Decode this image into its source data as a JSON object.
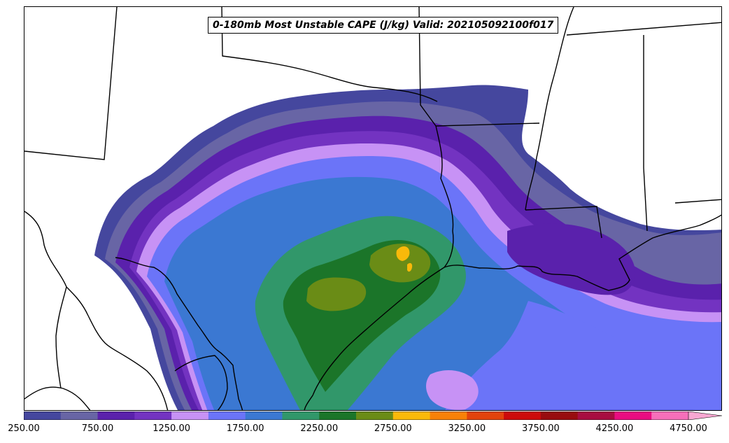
{
  "title": "0-180mb Most Unstable CAPE (J/kg) Valid: 202105092100f017",
  "colorbar": {
    "min": 250,
    "step": 250,
    "extend": "max",
    "colors": [
      "#45479e",
      "#6865a5",
      "#5a21ac",
      "#7333c1",
      "#c792f5",
      "#6b74f8",
      "#3b78d2",
      "#31976a",
      "#1b7529",
      "#6a8c16",
      "#f9b90a",
      "#f78108",
      "#e2430c",
      "#cc0b0b",
      "#980c0f",
      "#a80d41",
      "#e90d81",
      "#f66fba"
    ],
    "extend_color": "#f8a7d2",
    "tick_labels": [
      "250.00",
      "750.00",
      "1250.00",
      "1750.00",
      "2250.00",
      "2750.00",
      "3250.00",
      "3750.00",
      "4250.00",
      "4750.00"
    ]
  }
}
